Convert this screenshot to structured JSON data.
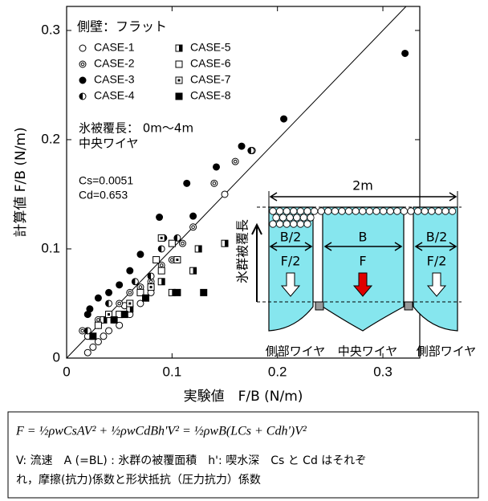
{
  "chart_data": {
    "type": "scatter",
    "x_label": "実験値　F/B (N/m)",
    "y_label": "計算値 F/B (N/m)",
    "xlim": [
      0,
      0.335
    ],
    "ylim": [
      0,
      0.322
    ],
    "xticks": [
      0,
      0.1,
      0.2,
      0.3
    ],
    "yticks": [
      0,
      0.1,
      0.2,
      0.3
    ],
    "annotations": [
      "側壁：フラット",
      "氷被覆長： 0m～4m",
      "中央ワイヤ",
      "Cs=0.0051",
      "Cd=0.653"
    ],
    "series": [
      {
        "name": "CASE-1",
        "marker": "circle-open",
        "x": [
          0.02,
          0.025,
          0.03,
          0.035,
          0.04,
          0.02,
          0.05,
          0.06,
          0.07,
          0.08,
          0.045,
          0.03,
          0.15,
          0.055
        ],
        "y": [
          0.005,
          0.01,
          0.015,
          0.02,
          0.025,
          0.02,
          0.03,
          0.04,
          0.05,
          0.06,
          0.035,
          0.03,
          0.15,
          0.048
        ]
      },
      {
        "name": "CASE-2",
        "marker": "circle-double",
        "x": [
          0.015,
          0.03,
          0.05,
          0.07,
          0.09,
          0.1,
          0.12,
          0.14,
          0.16,
          0.176,
          0.11,
          0.06,
          0.08
        ],
        "y": [
          0.025,
          0.035,
          0.05,
          0.065,
          0.085,
          0.09,
          0.12,
          0.16,
          0.18,
          0.19,
          0.105,
          0.06,
          0.07
        ]
      },
      {
        "name": "CASE-3",
        "marker": "circle-filled",
        "x": [
          0.02,
          0.022,
          0.03,
          0.04,
          0.05,
          0.07,
          0.088,
          0.092,
          0.114,
          0.142,
          0.166,
          0.206,
          0.321,
          0.06,
          0.12
        ],
        "y": [
          0.04,
          0.045,
          0.055,
          0.06,
          0.067,
          0.095,
          0.129,
          0.11,
          0.16,
          0.175,
          0.194,
          0.219,
          0.279,
          0.08,
          0.13
        ]
      },
      {
        "name": "CASE-4",
        "marker": "circle-half",
        "x": [
          0.02,
          0.04,
          0.065,
          0.09,
          0.175,
          0.105,
          0.08
        ],
        "y": [
          0.025,
          0.05,
          0.07,
          0.1,
          0.19,
          0.11,
          0.075
        ]
      },
      {
        "name": "CASE-5",
        "marker": "square-half",
        "x": [
          0.035,
          0.06,
          0.1,
          0.12,
          0.15,
          0.09,
          0.125
        ],
        "y": [
          0.035,
          0.045,
          0.06,
          0.08,
          0.105,
          0.07,
          0.1
        ]
      },
      {
        "name": "CASE-6",
        "marker": "square-open",
        "x": [
          0.03,
          0.05,
          0.07,
          0.09,
          0.1,
          0.085
        ],
        "y": [
          0.03,
          0.04,
          0.06,
          0.08,
          0.105,
          0.09
        ]
      },
      {
        "name": "CASE-7",
        "marker": "square-dot",
        "x": [
          0.04,
          0.06,
          0.08,
          0.105,
          0.09
        ],
        "y": [
          0.04,
          0.05,
          0.065,
          0.09,
          0.11
        ]
      },
      {
        "name": "CASE-8",
        "marker": "square-filled",
        "x": [
          0.025,
          0.045,
          0.055,
          0.075,
          0.105,
          0.13
        ],
        "y": [
          0.02,
          0.035,
          0.04,
          0.055,
          0.06,
          0.06
        ]
      }
    ]
  },
  "inset": {
    "width_label": "2m",
    "b_labels": [
      "B/2",
      "B",
      "B/2"
    ],
    "f_labels": [
      "F/2",
      "F",
      "F/2"
    ],
    "cover_label": "氷群被覆長",
    "wire_labels": [
      "側部ワイヤ",
      "中央ワイヤ",
      "側部ワイヤ"
    ]
  },
  "note": {
    "formula": "F = ½ρwCsAV² + ½ρwCdBh'V² = ½ρwB(LCs + Cdh')V²",
    "lines": [
      "V: 流速　A (=BL) : 氷群の被覆面積　h': 喫水深　Cs と Cd はそれぞ",
      "れ，摩擦(抗力)係数と形状抵抗（圧力抗力）係数"
    ]
  }
}
